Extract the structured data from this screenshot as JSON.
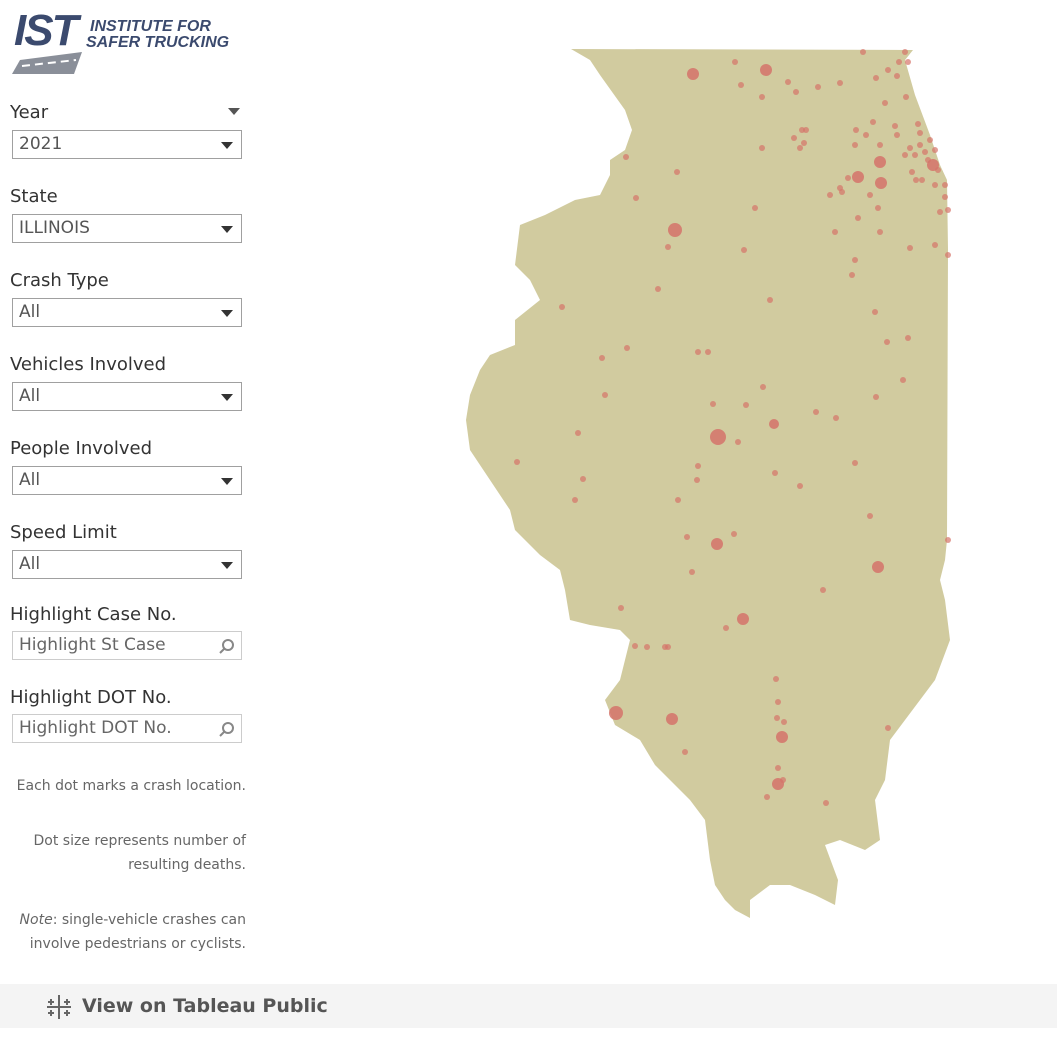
{
  "header": {
    "logo_mark": "IST",
    "logo_line1": "INSTITUTE FOR",
    "logo_line2": "SAFER TRUCKING"
  },
  "filters": [
    {
      "label": "Year",
      "value": "2021"
    },
    {
      "label": "State",
      "value": "ILLINOIS"
    },
    {
      "label": "Crash Type",
      "value": "All"
    },
    {
      "label": "Vehicles Involved",
      "value": "All"
    },
    {
      "label": "People Involved",
      "value": "All"
    },
    {
      "label": "Speed Limit",
      "value": "All"
    }
  ],
  "searches": [
    {
      "label": "Highlight Case No.",
      "placeholder": "Highlight St Case"
    },
    {
      "label": "Highlight DOT No.",
      "placeholder": "Highlight DOT No."
    }
  ],
  "notes": [
    "Each dot marks a crash location.",
    "Dot size represents number of resulting deaths."
  ],
  "note_emphasis": "Note",
  "note_text": ": single-vehicle crashes can involve pedestrians or cyclists.",
  "footer": {
    "link": "View on Tableau Public"
  }
}
